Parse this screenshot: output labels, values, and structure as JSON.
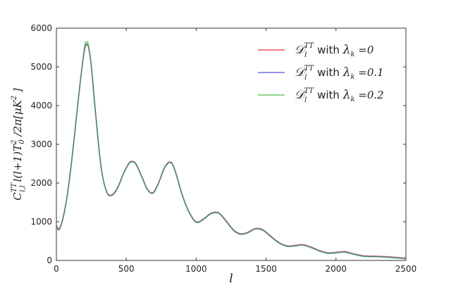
{
  "chart_data": {
    "type": "line",
    "xlabel": "l",
    "ylabel": "C^{TT}_{l,l} l(l+1)T_0^2 / 2π [μK²]",
    "ylabel_parts": {
      "C": "C",
      "sup": "TT",
      "sub": "l,l",
      "mid": " l(l+1)T",
      "sup2": "2",
      "sub2": "0",
      "div": " /2π[μK",
      "sup3": "2",
      "end": " ]"
    },
    "xlim": [
      0,
      2500
    ],
    "ylim": [
      0,
      6000
    ],
    "xticks": [
      0,
      500,
      1000,
      1500,
      2000,
      2500
    ],
    "yticks": [
      0,
      1000,
      2000,
      3000,
      4000,
      5000,
      6000
    ],
    "grid": false,
    "legend_position": "top-right",
    "series": [
      {
        "name": "D_l^TT with λ_k =0",
        "legend": {
          "D": "𝒟",
          "sup": "TT",
          "sub": "l",
          "with": " with ",
          "lambda": "λ",
          "lsub": "k",
          "val": " =0"
        },
        "color": "#ee5050",
        "x": [
          2,
          20,
          50,
          80,
          110,
          140,
          170,
          200,
          215,
          230,
          250,
          280,
          320,
          360,
          400,
          440,
          480,
          520,
          545,
          570,
          610,
          650,
          690,
          730,
          770,
          800,
          815,
          830,
          860,
          900,
          950,
          1000,
          1050,
          1100,
          1140,
          1170,
          1220,
          1270,
          1320,
          1370,
          1410,
          1440,
          1480,
          1530,
          1590,
          1650,
          1710,
          1760,
          1820,
          1880,
          1940,
          2000,
          2060,
          2120,
          2200,
          2300,
          2400,
          2500
        ],
        "y": [
          900,
          820,
          1150,
          1750,
          2600,
          3600,
          4600,
          5400,
          5550,
          5500,
          5000,
          3800,
          2400,
          1780,
          1700,
          1900,
          2250,
          2520,
          2560,
          2490,
          2180,
          1850,
          1750,
          2000,
          2380,
          2530,
          2540,
          2500,
          2200,
          1700,
          1250,
          1000,
          1070,
          1210,
          1250,
          1210,
          1000,
          780,
          690,
          730,
          810,
          830,
          790,
          640,
          470,
          380,
          390,
          410,
          350,
          260,
          200,
          210,
          230,
          180,
          120,
          110,
          90,
          60
        ]
      },
      {
        "name": "D_l^TT with λ_k =0.1",
        "legend": {
          "D": "𝒟",
          "sup": "TT",
          "sub": "l",
          "with": " with ",
          "lambda": "λ",
          "lsub": "k",
          "val": " =0.1"
        },
        "color": "#6b6bee",
        "x": [
          2,
          20,
          50,
          80,
          110,
          140,
          170,
          200,
          215,
          230,
          250,
          280,
          320,
          360,
          400,
          440,
          480,
          520,
          545,
          570,
          610,
          650,
          690,
          730,
          770,
          800,
          815,
          830,
          860,
          900,
          950,
          1000,
          1050,
          1100,
          1140,
          1170,
          1220,
          1270,
          1320,
          1370,
          1410,
          1440,
          1480,
          1530,
          1590,
          1650,
          1710,
          1760,
          1820,
          1880,
          1940,
          2000,
          2060,
          2120,
          2200,
          2300,
          2400,
          2500
        ],
        "y": [
          880,
          800,
          1130,
          1730,
          2580,
          3580,
          4580,
          5440,
          5580,
          5520,
          5020,
          3820,
          2410,
          1770,
          1690,
          1890,
          2240,
          2510,
          2550,
          2480,
          2170,
          1840,
          1740,
          1990,
          2370,
          2520,
          2530,
          2490,
          2190,
          1690,
          1240,
          990,
          1060,
          1200,
          1240,
          1200,
          990,
          770,
          680,
          720,
          800,
          820,
          780,
          630,
          460,
          370,
          380,
          400,
          340,
          250,
          190,
          200,
          220,
          170,
          110,
          100,
          80,
          50
        ]
      },
      {
        "name": "D_l^TT with λ_k =0.2",
        "legend": {
          "D": "𝒟",
          "sup": "TT",
          "sub": "l",
          "with": " with ",
          "lambda": "λ",
          "lsub": "k",
          "val": " =0.2"
        },
        "color": "#66cc66",
        "x": [
          2,
          20,
          50,
          80,
          110,
          140,
          170,
          200,
          208,
          215,
          222,
          230,
          250,
          280,
          320,
          360,
          400,
          440,
          480,
          520,
          545,
          570,
          610,
          650,
          690,
          730,
          770,
          800,
          815,
          830,
          860,
          900,
          950,
          1000,
          1050,
          1100,
          1140,
          1170,
          1220,
          1270,
          1320,
          1370,
          1410,
          1440,
          1480,
          1530,
          1590,
          1650,
          1710,
          1760,
          1820,
          1880,
          1940,
          2000,
          2060,
          2120,
          2200,
          2300,
          2400,
          2500
        ],
        "y": [
          870,
          790,
          1120,
          1720,
          2570,
          3570,
          4570,
          5480,
          5650,
          5560,
          5660,
          5540,
          5040,
          3840,
          2420,
          1760,
          1680,
          1880,
          2230,
          2500,
          2540,
          2470,
          2160,
          1830,
          1730,
          1980,
          2360,
          2510,
          2520,
          2480,
          2180,
          1680,
          1230,
          980,
          1050,
          1190,
          1230,
          1190,
          980,
          760,
          670,
          710,
          790,
          810,
          770,
          620,
          450,
          360,
          370,
          390,
          330,
          240,
          180,
          190,
          210,
          160,
          100,
          90,
          70,
          40
        ]
      }
    ],
    "overlay_color": "#2f4f5f"
  }
}
